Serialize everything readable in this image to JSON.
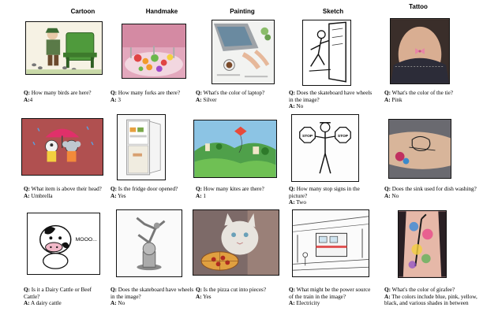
{
  "columns": [
    "Cartoon",
    "Handmake",
    "Painting",
    "Sketch",
    "Tattoo"
  ],
  "qa_prefix": "Q:",
  "answer_prefix": "A:",
  "rows": [
    [
      {
        "q": "How many birds are here?",
        "a": "4",
        "a_sep": ""
      },
      {
        "q": "How many forks are there?",
        "a": "3",
        "a_sep": " "
      },
      {
        "q": "What's the color of laptop?",
        "a": "Silver",
        "a_sep": " "
      },
      {
        "q": "Does the skateboard have wheels in the image?",
        "a": "No",
        "a_sep": " "
      },
      {
        "q": "What's the color of the tie?",
        "a": "Pink",
        "a_sep": " "
      }
    ],
    [
      {
        "q": "What item is above their head?",
        "a": "Umbrella",
        "a_sep": " "
      },
      {
        "q": "Is the fridge door opened?",
        "a": "Yes",
        "a_sep": " "
      },
      {
        "q": "How many kites are there?",
        "a": "1",
        "a_sep": " "
      },
      {
        "q": "How many stop signs in the picture?",
        "a": "Two",
        "a_sep": " "
      },
      {
        "q": "Does the sink used for dish washing?",
        "a": "No",
        "a_sep": " "
      }
    ],
    [
      {
        "q": "Is it a Dairy Cattle or Beef Cattle?",
        "a": "A dairy cattle",
        "a_sep": " "
      },
      {
        "q": "Does the skateboard have wheels in the image?",
        "a": "No",
        "a_sep": " "
      },
      {
        "q": "Is the pizza cut into pieces?",
        "a": "Yes",
        "a_sep": " "
      },
      {
        "q": "What might be the power source of the train in the image?",
        "a": "Electricity",
        "a_sep": " "
      },
      {
        "q": "What's the color of girafee?",
        "a": "The colors include blue, pink, yellow, black, and various shades in between",
        "a_sep": " "
      }
    ]
  ],
  "image_text": {
    "stop_left": "STOP",
    "stop_right": "STOP",
    "cow_text": "MOOO..."
  },
  "colors": {
    "border": "#111111",
    "cartoon_bg": "#f4f0e0",
    "handmake_bg": "#d98aa8",
    "tattoo_bg": "#c9a088",
    "umbrella_bg": "#a94a4a",
    "kite_sky": "#7fb7d8",
    "pizza_bg": "#8a6f63"
  }
}
